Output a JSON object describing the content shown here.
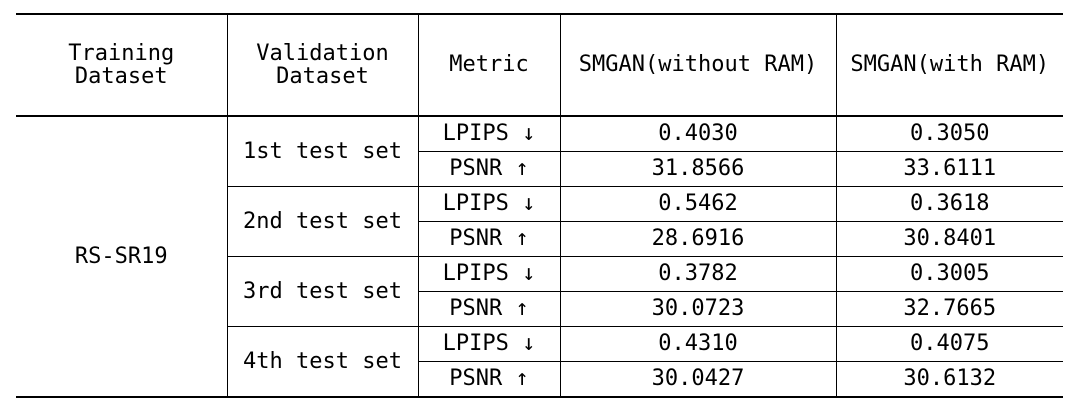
{
  "headers": {
    "training_line1": "Training",
    "training_line2": "Dataset",
    "validation_line1": "Validation",
    "validation_line2": "Dataset",
    "metric": "Metric",
    "without_ram": "SMGAN(without RAM)",
    "with_ram": "SMGAN(with RAM)"
  },
  "training_dataset": "RS-SR19",
  "groups": [
    {
      "validation": "1st test set",
      "rows": [
        {
          "metric": "LPIPS ↓",
          "without_ram": "0.4030",
          "with_ram": "0.3050"
        },
        {
          "metric": "PSNR ↑",
          "without_ram": "31.8566",
          "with_ram": "33.6111"
        }
      ]
    },
    {
      "validation": "2nd test set",
      "rows": [
        {
          "metric": "LPIPS ↓",
          "without_ram": "0.5462",
          "with_ram": "0.3618"
        },
        {
          "metric": "PSNR ↑",
          "without_ram": "28.6916",
          "with_ram": "30.8401"
        }
      ]
    },
    {
      "validation": "3rd test set",
      "rows": [
        {
          "metric": "LPIPS ↓",
          "without_ram": "0.3782",
          "with_ram": "0.3005"
        },
        {
          "metric": "PSNR ↑",
          "without_ram": "30.0723",
          "with_ram": "32.7665"
        }
      ]
    },
    {
      "validation": "4th test set",
      "rows": [
        {
          "metric": "LPIPS ↓",
          "without_ram": "0.4310",
          "with_ram": "0.4075"
        },
        {
          "metric": "PSNR ↑",
          "without_ram": "30.0427",
          "with_ram": "30.6132"
        }
      ]
    }
  ]
}
